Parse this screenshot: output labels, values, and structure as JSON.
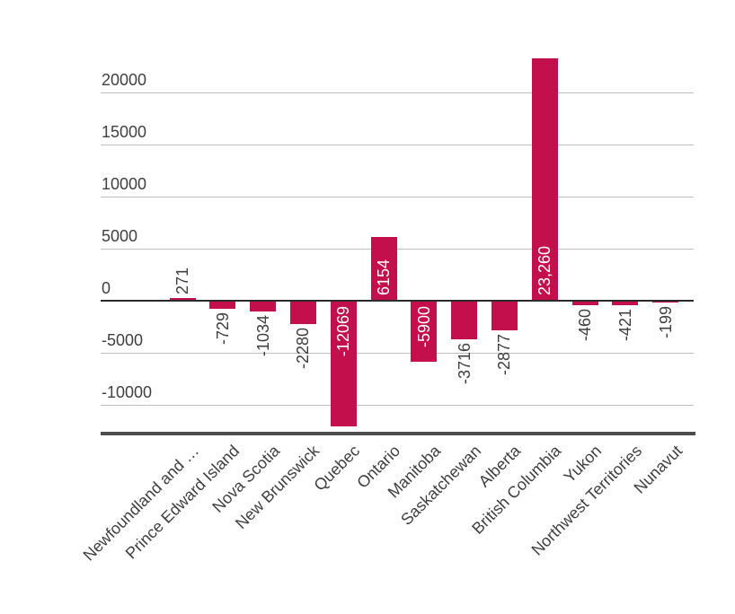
{
  "chart_data": {
    "type": "bar",
    "title": "",
    "xlabel": "",
    "ylabel": "",
    "categories": [
      "Newfoundland and …",
      "Prince Edward Island",
      "Nova Scotia",
      "New Brunswick",
      "Quebec",
      "Ontario",
      "Manitoba",
      "Saskatchewan",
      "Alberta",
      "British Columbia",
      "Yukon",
      "Northwest Territories",
      "Nunavut"
    ],
    "values": [
      271,
      -729,
      -1034,
      -2280,
      -12069,
      6154,
      -5900,
      -3716,
      -2877,
      23260,
      -460,
      -421,
      -199
    ],
    "data_labels": [
      "271",
      "-729",
      "-1034",
      "-2280",
      "-12069",
      "6154",
      "-5900",
      "-3716",
      "-2877",
      "23,260",
      "-460",
      "-421",
      "-199"
    ],
    "label_placement": [
      "outside",
      "outside",
      "outside",
      "outside",
      "inside",
      "inside",
      "inside",
      "outside",
      "outside",
      "inside",
      "outside",
      "outside",
      "outside"
    ],
    "yticks": [
      20000,
      15000,
      10000,
      5000,
      0,
      -5000,
      -10000
    ],
    "ytick_labels": [
      "20000",
      "15000",
      "10000",
      "5000",
      "0",
      "-5000",
      "-10000"
    ],
    "ylim": [
      -12750,
      23500
    ],
    "grid": true,
    "legend": false,
    "series_name": "",
    "colors": {
      "bar": "#c3104d",
      "label_inside": "#ffffff",
      "label_outside": "#404040",
      "tick_text": "#404040",
      "gridline": "#bfbfbf",
      "zero_line": "#2b2b2b",
      "baseline": "#4d4d4d",
      "background": "#ffffff"
    }
  }
}
